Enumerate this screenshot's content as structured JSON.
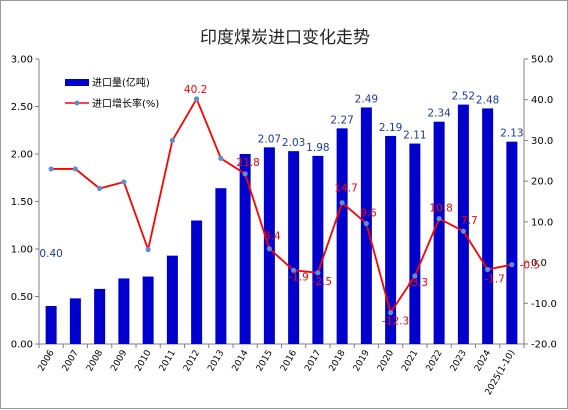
{
  "chart_data": {
    "type": "bar+line",
    "title": "印度煤炭进口变化走势",
    "categories": [
      "2006",
      "2007",
      "2008",
      "2009",
      "2010",
      "2011",
      "2012",
      "2013",
      "2014",
      "2015",
      "2016",
      "2017",
      "2018",
      "2019",
      "2020",
      "2021",
      "2022",
      "2023",
      "2024",
      "2025(1-10)"
    ],
    "series": [
      {
        "name": "进口量(亿吨)",
        "type": "bar",
        "axis": "left",
        "color": "#0000cc",
        "values": [
          0.4,
          0.48,
          0.58,
          0.69,
          0.71,
          0.93,
          1.3,
          1.64,
          2.0,
          2.07,
          2.03,
          1.98,
          2.27,
          2.49,
          2.19,
          2.11,
          2.34,
          2.52,
          2.48,
          2.13
        ],
        "labels": [
          "0.40",
          "",
          "",
          "",
          "",
          "",
          "",
          "",
          "",
          "2.07",
          "2.03",
          "1.98",
          "2.27",
          "2.49",
          "2.19",
          "2.11",
          "2.34",
          "2.52",
          "2.48",
          "2.13"
        ]
      },
      {
        "name": "进口增长率(%)",
        "type": "line",
        "axis": "right",
        "color": "#ff0000",
        "marker_color": "#5b8fd0",
        "values": [
          23.0,
          23.0,
          18.2,
          19.8,
          3.2,
          30.0,
          40.2,
          25.6,
          21.8,
          3.4,
          -1.9,
          -2.5,
          14.7,
          9.6,
          -12.3,
          -3.3,
          10.8,
          7.7,
          -1.7,
          -0.5
        ],
        "labels": [
          "",
          "",
          "",
          "",
          "",
          "",
          "40.2",
          "",
          "21.8",
          "3.4",
          "-1.9",
          "-2.5",
          "14.7",
          "9.6",
          "-12.3",
          "-3.3",
          "10.8",
          "7.7",
          "-1.7",
          "-0.5"
        ]
      }
    ],
    "y_left": {
      "min": 0,
      "max": 3.0,
      "step": 0.5,
      "ticks": [
        "0.00",
        "0.50",
        "1.00",
        "1.50",
        "2.00",
        "2.50",
        "3.00"
      ]
    },
    "y_right": {
      "min": -20,
      "max": 50,
      "step": 10,
      "ticks": [
        "-20.0",
        "-10.0",
        "0.0",
        "10.0",
        "20.0",
        "30.0",
        "40.0",
        "50.0"
      ]
    },
    "grid": false,
    "legend_position": "top-left"
  }
}
